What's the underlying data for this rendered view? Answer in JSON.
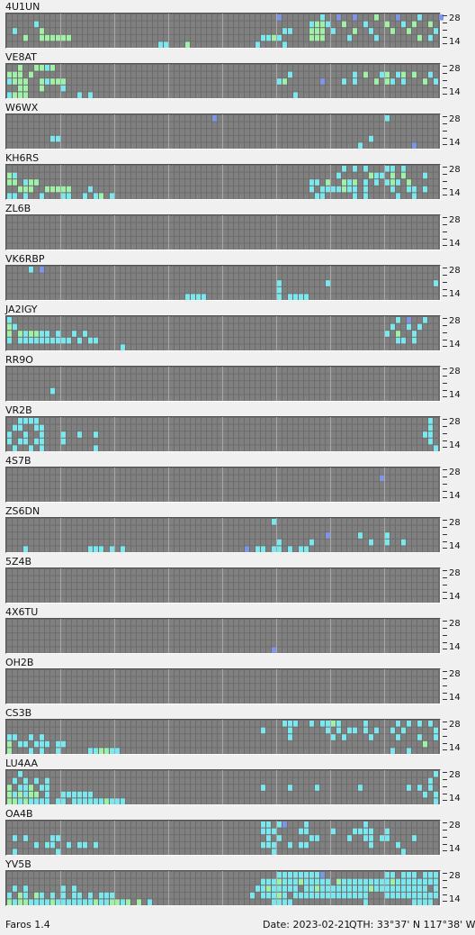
{
  "app": {
    "name": "Faros 1.4"
  },
  "status": {
    "date": "Date: 2023-02-21",
    "qth": "QTH: 33°37' N  117°38' W"
  },
  "axis": {
    "top_label": "28",
    "bottom_label": "14"
  },
  "colors": {
    "empty_cell": "#808080",
    "cell_gap": "#6c6c6c",
    "hour_divider": "#a8a8a8",
    "weak": "#7f95e8",
    "medium": "#7be8f0",
    "strong": "#a0f0a8"
  },
  "grid": {
    "columns": 96,
    "rows": 5
  },
  "beacons": [
    {
      "call": "4U1UN",
      "cells": [
        "0,50,w",
        "0,58,m",
        "0,61,w",
        "0,64,w",
        "0,68,s",
        "0,72,w",
        "0,76,m",
        "0,80,w",
        "1,5,m",
        "1,56,m",
        "1,57,s",
        "1,58,s",
        "1,59,m",
        "1,62,s",
        "1,66,m",
        "1,70,s",
        "1,73,m",
        "1,75,s",
        "1,78,s",
        "2,1,m",
        "2,6,s",
        "2,51,m",
        "2,52,m",
        "2,56,s",
        "2,57,s",
        "2,58,s",
        "2,60,m",
        "2,64,s",
        "2,67,m",
        "2,71,s",
        "2,74,s",
        "2,79,m",
        "3,3,s",
        "3,6,s",
        "3,7,s",
        "3,8,s",
        "3,9,s",
        "3,10,s",
        "3,11,s",
        "3,47,m",
        "3,48,m",
        "3,49,s",
        "3,50,m",
        "3,56,s",
        "3,57,s",
        "3,58,s",
        "3,63,m",
        "3,68,m",
        "3,76,s",
        "3,78,m",
        "4,28,m",
        "4,29,m",
        "4,33,s",
        "4,46,m",
        "4,51,m"
      ]
    },
    {
      "call": "VE8AT",
      "cells": [
        "0,2,s",
        "0,5,s",
        "0,6,s",
        "0,7,m",
        "0,8,s",
        "1,0,s",
        "1,1,s",
        "1,2,s",
        "1,4,s",
        "1,52,m",
        "1,64,m",
        "1,66,s",
        "1,69,m",
        "1,70,s",
        "1,72,m",
        "1,73,s",
        "1,75,s",
        "1,78,m",
        "2,0,m",
        "2,1,s",
        "2,2,s",
        "2,3,s",
        "2,6,s",
        "2,7,m",
        "2,8,s",
        "2,9,s",
        "2,10,s",
        "2,50,m",
        "2,51,s",
        "2,58,w",
        "2,62,m",
        "2,64,m",
        "2,68,s",
        "2,70,s",
        "2,71,m",
        "2,73,m",
        "2,77,s",
        "2,79,m",
        "3,2,s",
        "3,3,s",
        "3,6,s",
        "3,10,m",
        "4,0,m",
        "4,1,s",
        "4,2,s",
        "4,3,s",
        "4,13,m",
        "4,15,m",
        "4,53,m"
      ]
    },
    {
      "call": "W6WX",
      "cells": [
        "0,38,w",
        "0,70,m",
        "3,8,m",
        "3,9,m",
        "3,67,m",
        "4,65,m",
        "4,75,w"
      ]
    },
    {
      "call": "KH6RS",
      "cells": [
        "0,62,m",
        "0,64,m",
        "0,66,m",
        "0,70,m",
        "0,71,m",
        "0,73,m",
        "1,0,s",
        "1,1,m",
        "1,61,m",
        "1,67,s",
        "1,68,m",
        "1,69,m",
        "1,71,s",
        "1,73,s",
        "1,77,m",
        "2,0,s",
        "2,1,s",
        "2,3,m",
        "2,4,s",
        "2,5,s",
        "2,56,m",
        "2,57,m",
        "2,59,s",
        "2,62,s",
        "2,63,m",
        "2,64,s",
        "2,66,m",
        "2,68,m",
        "2,70,m",
        "2,71,s",
        "2,72,m",
        "2,74,s",
        "3,2,s",
        "3,3,s",
        "3,4,s",
        "3,7,s",
        "3,8,s",
        "3,9,s",
        "3,10,s",
        "3,11,s",
        "3,15,m",
        "3,56,m",
        "3,58,m",
        "3,59,m",
        "3,60,m",
        "3,61,m",
        "3,62,s",
        "3,63,m",
        "3,64,m",
        "3,66,m",
        "3,71,m",
        "3,74,m",
        "3,75,m",
        "3,77,m",
        "4,0,m",
        "4,1,m",
        "4,3,m",
        "4,6,m",
        "4,10,m",
        "4,11,m",
        "4,14,m",
        "4,16,m",
        "4,17,s",
        "4,19,m",
        "4,57,m",
        "4,58,m",
        "4,64,m",
        "4,66,m",
        "4,72,m",
        "4,75,m"
      ]
    },
    {
      "call": "ZL6B",
      "cells": []
    },
    {
      "call": "VK6RBP",
      "cells": [
        "0,4,m",
        "0,6,w",
        "2,50,m",
        "2,59,m",
        "2,79,m",
        "3,50,m",
        "4,33,m",
        "4,34,m",
        "4,35,m",
        "4,36,m",
        "4,50,m",
        "4,52,m",
        "4,53,m",
        "4,54,m",
        "4,55,m"
      ]
    },
    {
      "call": "JA2IGY",
      "cells": [
        "0,0,m",
        "0,72,m",
        "0,74,w",
        "0,77,m",
        "1,0,s",
        "1,1,m",
        "1,71,m",
        "1,74,m",
        "1,76,m",
        "2,0,s",
        "2,2,s",
        "2,3,m",
        "2,4,s",
        "2,5,s",
        "2,6,m",
        "2,7,m",
        "2,9,m",
        "2,12,m",
        "2,14,m",
        "2,70,m",
        "2,72,s",
        "2,75,m",
        "3,0,m",
        "3,2,m",
        "3,3,m",
        "3,4,m",
        "3,5,m",
        "3,6,m",
        "3,7,m",
        "3,8,m",
        "3,9,m",
        "3,10,m",
        "3,11,m",
        "3,13,m",
        "3,15,m",
        "3,16,m",
        "3,72,m",
        "3,73,m",
        "3,75,m",
        "4,21,m"
      ]
    },
    {
      "call": "RR9O",
      "cells": [
        "3,8,m"
      ]
    },
    {
      "call": "VR2B",
      "cells": [
        "0,2,m",
        "0,3,m",
        "0,4,m",
        "0,5,m",
        "0,78,m",
        "1,1,m",
        "1,2,m",
        "1,5,m",
        "1,6,m",
        "1,78,m",
        "2,0,m",
        "2,3,m",
        "2,6,m",
        "2,10,m",
        "2,13,m",
        "2,16,m",
        "2,77,m",
        "2,78,m",
        "3,0,m",
        "3,2,m",
        "3,3,m",
        "3,5,m",
        "3,6,m",
        "3,10,m",
        "3,78,m",
        "4,1,m",
        "4,4,m",
        "4,6,m",
        "4,16,m",
        "4,79,m"
      ]
    },
    {
      "call": "4S7B",
      "cells": [
        "1,69,w"
      ]
    },
    {
      "call": "ZS6DN",
      "cells": [
        "0,49,m",
        "2,59,w",
        "2,65,m",
        "2,70,m",
        "3,50,m",
        "3,56,m",
        "3,67,m",
        "3,70,m",
        "3,73,m",
        "4,3,m",
        "4,15,m",
        "4,16,m",
        "4,17,m",
        "4,19,m",
        "4,21,m",
        "4,44,w",
        "4,46,m",
        "4,47,m",
        "4,49,m",
        "4,50,m",
        "4,52,m",
        "4,54,m",
        "4,55,m"
      ]
    },
    {
      "call": "5Z4B",
      "cells": []
    },
    {
      "call": "4X6TU",
      "cells": [
        "4,49,w"
      ]
    },
    {
      "call": "OH2B",
      "cells": []
    },
    {
      "call": "CS3B",
      "cells": [
        "0,51,m",
        "0,52,m",
        "0,53,m",
        "0,56,m",
        "0,58,m",
        "0,59,m",
        "0,60,s",
        "0,61,m",
        "0,66,m",
        "0,72,m",
        "0,74,m",
        "0,76,m",
        "0,78,m",
        "1,47,m",
        "1,52,m",
        "1,59,m",
        "1,61,m",
        "1,63,m",
        "1,64,m",
        "1,66,m",
        "1,68,m",
        "1,71,m",
        "1,73,m",
        "1,79,m",
        "2,0,m",
        "2,1,m",
        "2,4,m",
        "2,6,m",
        "2,52,m",
        "2,60,m",
        "2,62,m",
        "2,67,m",
        "2,72,m",
        "2,76,m",
        "2,79,m",
        "3,0,s",
        "3,2,m",
        "3,3,m",
        "3,5,m",
        "3,6,m",
        "3,7,m",
        "3,9,m",
        "3,10,m",
        "3,77,s",
        "4,0,s",
        "4,4,m",
        "4,6,m",
        "4,9,m",
        "4,15,m",
        "4,16,m",
        "4,17,s",
        "4,18,s",
        "4,19,m",
        "4,20,m",
        "4,71,m",
        "4,74,m"
      ]
    },
    {
      "call": "LU4AA",
      "cells": [
        "0,2,m",
        "0,79,m",
        "1,1,m",
        "1,3,m",
        "1,5,m",
        "1,7,m",
        "1,78,m",
        "2,0,s",
        "2,2,m",
        "2,3,m",
        "2,4,s",
        "2,6,m",
        "2,7,m",
        "2,47,m",
        "2,52,m",
        "2,57,m",
        "2,65,m",
        "2,74,m",
        "2,76,m",
        "2,78,m",
        "3,0,s",
        "3,1,m",
        "3,2,s",
        "3,3,m",
        "3,4,s",
        "3,5,s",
        "3,7,m",
        "3,10,m",
        "3,11,m",
        "3,12,m",
        "3,13,m",
        "3,14,m",
        "3,15,m",
        "3,77,m",
        "3,79,m",
        "4,0,s",
        "4,1,s",
        "4,2,m",
        "4,3,s",
        "4,4,m",
        "4,5,m",
        "4,6,m",
        "4,7,m",
        "4,9,m",
        "4,10,m",
        "4,12,m",
        "4,13,m",
        "4,14,m",
        "4,15,m",
        "4,16,m",
        "4,17,m",
        "4,18,s",
        "4,19,m",
        "4,20,m",
        "4,21,m",
        "4,79,m"
      ]
    },
    {
      "call": "OA4B",
      "cells": [
        "0,47,m",
        "0,48,m",
        "0,50,m",
        "0,51,w",
        "0,55,m",
        "0,66,m",
        "1,47,m",
        "1,48,m",
        "1,49,m",
        "1,54,m",
        "1,55,m",
        "1,60,m",
        "1,64,m",
        "1,65,m",
        "1,66,m",
        "1,67,m",
        "1,70,m",
        "2,1,m",
        "2,3,m",
        "2,8,m",
        "2,9,m",
        "2,48,m",
        "2,50,m",
        "2,56,m",
        "2,57,m",
        "2,63,m",
        "2,66,m",
        "2,67,m",
        "2,69,m",
        "2,70,m",
        "2,75,m",
        "3,5,m",
        "3,7,m",
        "3,8,m",
        "3,11,m",
        "3,13,m",
        "3,14,m",
        "3,16,m",
        "3,47,m",
        "3,48,m",
        "3,49,m",
        "3,52,m",
        "3,54,m",
        "3,55,m",
        "3,67,m",
        "3,72,m",
        "4,1,m",
        "4,9,m",
        "4,49,m",
        "4,73,m"
      ]
    },
    {
      "call": "YV5B",
      "cells": [
        "0,50,m",
        "0,51,m",
        "0,52,m",
        "0,53,m",
        "0,54,m",
        "0,55,m",
        "0,56,m",
        "0,57,m",
        "0,58,w",
        "0,70,m",
        "0,71,m",
        "0,73,m",
        "0,74,m",
        "0,75,m",
        "0,77,m",
        "0,78,m",
        "0,79,m",
        "1,47,m",
        "1,48,m",
        "1,49,m",
        "1,50,s",
        "1,51,m",
        "1,52,m",
        "1,53,m",
        "1,54,s",
        "1,55,m",
        "1,56,m",
        "1,57,m",
        "1,58,m",
        "1,59,m",
        "1,61,s",
        "1,62,m",
        "1,63,m",
        "1,64,m",
        "1,65,m",
        "1,66,m",
        "1,67,m",
        "1,68,m",
        "1,69,m",
        "1,70,m",
        "1,71,s",
        "1,72,m",
        "1,73,m",
        "1,74,m",
        "1,75,m",
        "1,76,m",
        "1,77,m",
        "1,78,m",
        "1,79,m",
        "2,1,m",
        "2,3,m",
        "2,10,m",
        "2,12,m",
        "2,46,m",
        "2,47,m",
        "2,48,s",
        "2,49,m",
        "2,50,m",
        "2,51,m",
        "2,52,m",
        "2,53,m",
        "2,55,m",
        "2,56,m",
        "2,57,s",
        "2,58,m",
        "2,59,m",
        "2,60,m",
        "2,61,m",
        "2,62,m",
        "2,63,m",
        "2,64,m",
        "2,65,m",
        "2,66,m",
        "2,67,s",
        "2,68,m",
        "2,69,m",
        "2,70,m",
        "2,71,m",
        "2,72,m",
        "2,73,m",
        "2,74,m",
        "2,75,m",
        "2,76,m",
        "2,77,m",
        "2,79,m",
        "3,0,m",
        "3,2,s",
        "3,3,m",
        "3,5,s",
        "3,6,m",
        "3,8,m",
        "3,10,m",
        "3,12,m",
        "3,13,m",
        "3,15,m",
        "3,17,m",
        "3,18,m",
        "3,19,m",
        "3,45,m",
        "3,47,m",
        "3,48,m",
        "3,49,m",
        "3,50,s",
        "3,51,m",
        "3,53,m",
        "3,54,m",
        "3,55,m",
        "3,56,m",
        "3,57,m",
        "3,58,m",
        "3,59,m",
        "3,60,m",
        "3,61,m",
        "3,62,m",
        "3,63,m",
        "3,64,m",
        "3,65,m",
        "3,66,m",
        "3,70,m",
        "3,71,m",
        "3,72,m",
        "3,73,m",
        "3,74,m",
        "3,75,m",
        "3,76,m",
        "3,77,m",
        "3,78,m",
        "3,79,m",
        "4,0,s",
        "4,1,m",
        "4,2,s",
        "4,3,s",
        "4,4,m",
        "4,5,m",
        "4,6,m",
        "4,7,m",
        "4,8,s",
        "4,9,m",
        "4,10,m",
        "4,11,m",
        "4,12,m",
        "4,13,m",
        "4,14,m",
        "4,15,m",
        "4,16,s",
        "4,17,m",
        "4,18,m",
        "4,19,s",
        "4,20,s",
        "4,21,m",
        "4,22,s",
        "4,24,s",
        "4,26,m",
        "4,49,m",
        "4,50,m",
        "4,51,m",
        "4,52,m",
        "4,66,m",
        "4,75,m",
        "4,76,m",
        "4,77,m",
        "4,78,m"
      ]
    }
  ]
}
